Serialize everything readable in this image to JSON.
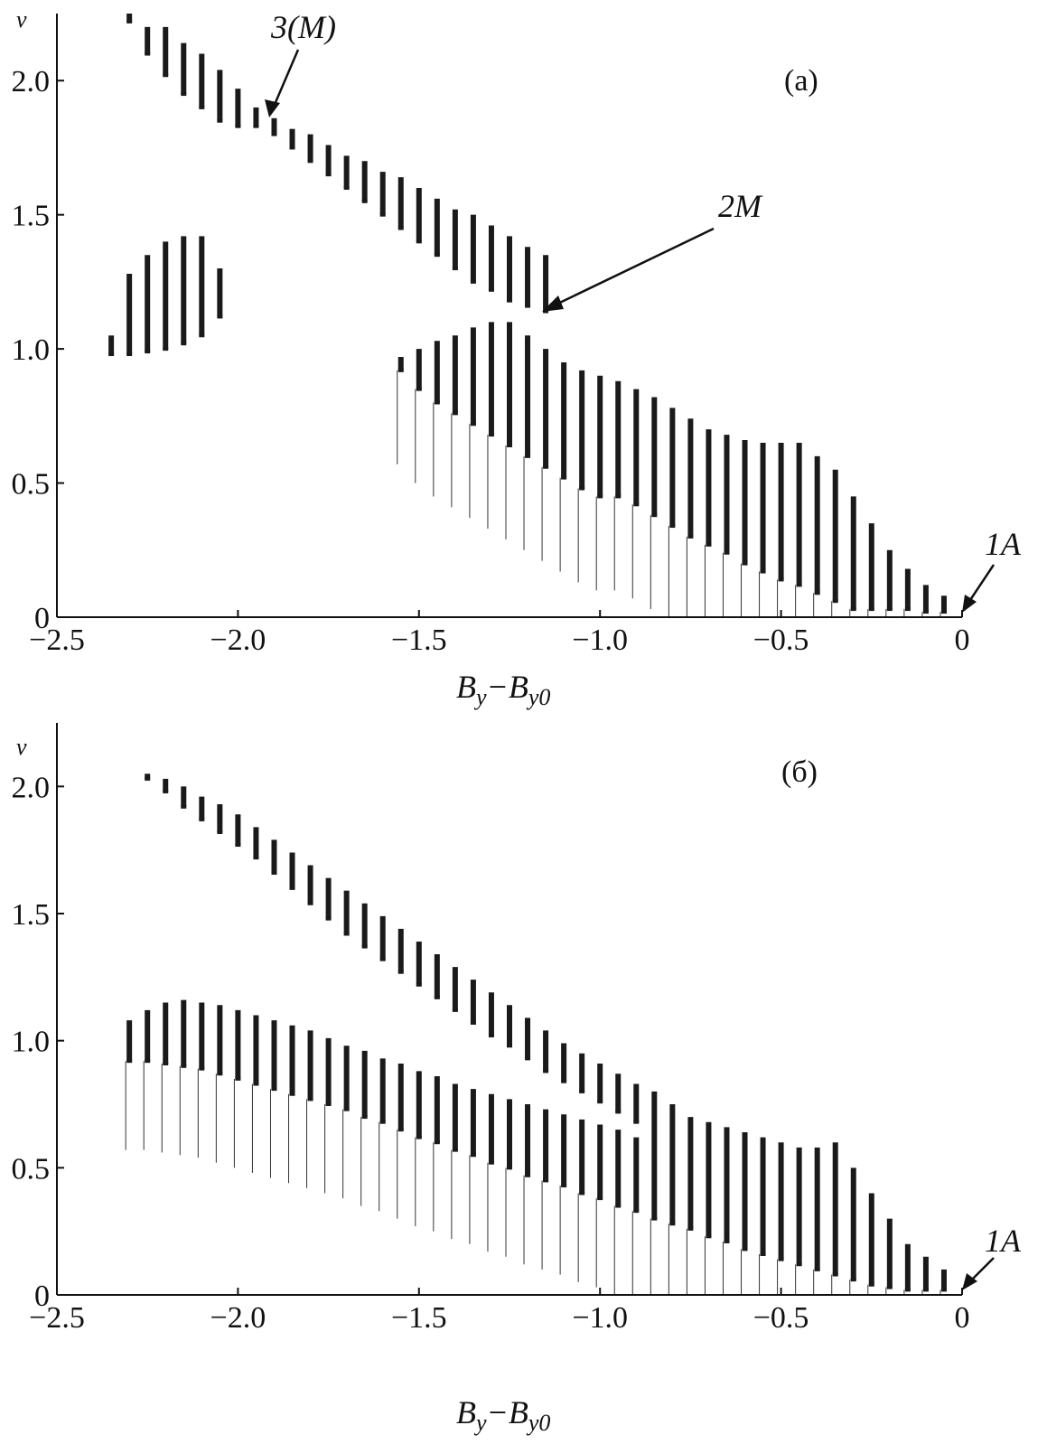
{
  "chart_data": [
    {
      "type": "scatter",
      "panel_label": "(a)",
      "ylabel": "v",
      "xlabel_main": "B",
      "xlabel_sub1": "y",
      "xlabel_minus": "−B",
      "xlabel_sub2": "y0",
      "xlim": [
        -2.5,
        0
      ],
      "ylim": [
        0,
        2.25
      ],
      "xticks": [
        "−2.5",
        "−2.0",
        "−1.5",
        "−1.0",
        "−0.5",
        "0"
      ],
      "yticks": [
        "0",
        "0.5",
        "1.0",
        "1.5",
        "2.0"
      ],
      "annotations": [
        "3(M)",
        "2M",
        "1A"
      ],
      "series": [
        {
          "x": [
            -2.35,
            -2.3,
            -2.25,
            -2.2,
            -2.15,
            -2.1,
            -2.05,
            -2.0,
            -1.95,
            -1.9,
            -1.85,
            -1.8,
            -1.75,
            -1.7,
            -1.65,
            -1.6,
            -1.55,
            -1.5,
            -1.45,
            -1.4,
            -1.35,
            -1.3,
            -1.25,
            -1.2,
            -1.15
          ],
          "ymin": [
            null,
            2.22,
            2.1,
            2.02,
            1.95,
            1.9,
            1.85,
            1.83,
            1.83,
            1.8,
            1.75,
            1.7,
            1.65,
            1.6,
            1.55,
            1.5,
            1.45,
            1.4,
            1.35,
            1.3,
            1.25,
            1.22,
            1.18,
            1.16,
            1.14
          ],
          "ymax": [
            null,
            2.25,
            2.2,
            2.2,
            2.14,
            2.1,
            2.04,
            1.97,
            1.9,
            1.86,
            1.82,
            1.8,
            1.76,
            1.72,
            1.7,
            1.66,
            1.64,
            1.6,
            1.56,
            1.52,
            1.5,
            1.46,
            1.42,
            1.38,
            1.35
          ]
        },
        {
          "x": [
            -2.35,
            -2.3,
            -2.25,
            -2.2,
            -2.15,
            -2.1,
            -2.05
          ],
          "ymin": [
            0.98,
            0.98,
            0.99,
            1.0,
            1.02,
            1.05,
            1.12
          ],
          "ymax": [
            1.05,
            1.28,
            1.35,
            1.4,
            1.42,
            1.42,
            1.3
          ]
        },
        {
          "x": [
            -1.55,
            -1.5,
            -1.45,
            -1.4,
            -1.35,
            -1.3,
            -1.25,
            -1.2,
            -1.15,
            -1.1,
            -1.05,
            -1.0,
            -0.95,
            -0.9,
            -0.85,
            -0.8,
            -0.75,
            -0.7,
            -0.65,
            -0.6,
            -0.55,
            -0.5,
            -0.45,
            -0.4,
            -0.35,
            -0.3,
            -0.25,
            -0.2,
            -0.15,
            -0.1,
            -0.05
          ],
          "ymin": [
            0.92,
            0.85,
            0.8,
            0.76,
            0.72,
            0.68,
            0.64,
            0.6,
            0.56,
            0.52,
            0.48,
            0.45,
            0.45,
            0.42,
            0.38,
            0.34,
            0.3,
            0.27,
            0.24,
            0.2,
            0.17,
            0.14,
            0.12,
            0.09,
            0.06,
            0.03,
            0.03,
            0.03,
            0.03,
            0.02,
            0.02
          ],
          "ymax": [
            0.97,
            1.0,
            1.03,
            1.05,
            1.08,
            1.1,
            1.1,
            1.05,
            1.0,
            0.95,
            0.92,
            0.9,
            0.88,
            0.85,
            0.82,
            0.78,
            0.74,
            0.7,
            0.68,
            0.66,
            0.65,
            0.65,
            0.65,
            0.6,
            0.55,
            0.45,
            0.35,
            0.25,
            0.18,
            0.12,
            0.08
          ]
        }
      ]
    },
    {
      "type": "scatter",
      "panel_label": "(б)",
      "ylabel": "v",
      "xlabel_main": "B",
      "xlabel_sub1": "y",
      "xlabel_minus": "−B",
      "xlabel_sub2": "y0",
      "xlim": [
        -2.5,
        0
      ],
      "ylim": [
        0,
        2.25
      ],
      "xticks": [
        "−2.5",
        "−2.0",
        "−1.5",
        "−1.0",
        "−0.5",
        "0"
      ],
      "yticks": [
        "0",
        "0.5",
        "1.0",
        "1.5",
        "2.0"
      ],
      "annotations": [
        "1A"
      ],
      "series": [
        {
          "x": [
            -2.25,
            -2.2,
            -2.15,
            -2.1,
            -2.05,
            -2.0,
            -1.95,
            -1.9,
            -1.85,
            -1.8,
            -1.75,
            -1.7,
            -1.65,
            -1.6,
            -1.55,
            -1.5,
            -1.45,
            -1.4,
            -1.35,
            -1.3,
            -1.25,
            -1.2,
            -1.15,
            -1.1,
            -1.05,
            -1.0,
            -0.95,
            -0.9
          ],
          "ymin": [
            2.03,
            1.98,
            1.92,
            1.87,
            1.82,
            1.77,
            1.72,
            1.66,
            1.6,
            1.54,
            1.48,
            1.42,
            1.37,
            1.32,
            1.27,
            1.22,
            1.17,
            1.12,
            1.07,
            1.02,
            0.98,
            0.93,
            0.88,
            0.84,
            0.8,
            0.76,
            0.72,
            0.68
          ],
          "ymax": [
            2.05,
            2.03,
            2.0,
            1.96,
            1.93,
            1.89,
            1.84,
            1.79,
            1.74,
            1.69,
            1.64,
            1.59,
            1.54,
            1.49,
            1.44,
            1.39,
            1.34,
            1.29,
            1.24,
            1.19,
            1.14,
            1.09,
            1.04,
            0.99,
            0.95,
            0.91,
            0.87,
            0.83
          ]
        },
        {
          "x": [
            -2.3,
            -2.25,
            -2.2,
            -2.15,
            -2.1,
            -2.05,
            -2.0,
            -1.95,
            -1.9,
            -1.85,
            -1.8,
            -1.75,
            -1.7,
            -1.65,
            -1.6,
            -1.55,
            -1.5,
            -1.45,
            -1.4,
            -1.35,
            -1.3,
            -1.25,
            -1.2,
            -1.15,
            -1.1,
            -1.05,
            -1.0,
            -0.95,
            -0.9,
            -0.85,
            -0.8,
            -0.75,
            -0.7,
            -0.65,
            -0.6,
            -0.55,
            -0.5,
            -0.45,
            -0.4,
            -0.35,
            -0.3,
            -0.25,
            -0.2,
            -0.15,
            -0.1,
            -0.05
          ],
          "ymin": [
            0.92,
            0.92,
            0.91,
            0.9,
            0.89,
            0.87,
            0.85,
            0.83,
            0.81,
            0.79,
            0.77,
            0.75,
            0.73,
            0.7,
            0.68,
            0.65,
            0.62,
            0.6,
            0.57,
            0.55,
            0.52,
            0.5,
            0.47,
            0.45,
            0.43,
            0.4,
            0.38,
            0.35,
            0.33,
            0.3,
            0.28,
            0.26,
            0.23,
            0.21,
            0.18,
            0.16,
            0.14,
            0.12,
            0.1,
            0.08,
            0.06,
            0.04,
            0.03,
            0.02,
            0.02,
            0.02
          ],
          "ymax": [
            1.08,
            1.12,
            1.15,
            1.16,
            1.15,
            1.14,
            1.12,
            1.1,
            1.08,
            1.06,
            1.04,
            1.01,
            0.98,
            0.96,
            0.93,
            0.91,
            0.88,
            0.86,
            0.83,
            0.81,
            0.79,
            0.77,
            0.75,
            0.73,
            0.71,
            0.69,
            0.67,
            0.65,
            0.62,
            0.8,
            0.75,
            0.7,
            0.68,
            0.66,
            0.64,
            0.62,
            0.6,
            0.58,
            0.58,
            0.6,
            0.5,
            0.4,
            0.3,
            0.2,
            0.15,
            0.1
          ]
        }
      ]
    }
  ]
}
